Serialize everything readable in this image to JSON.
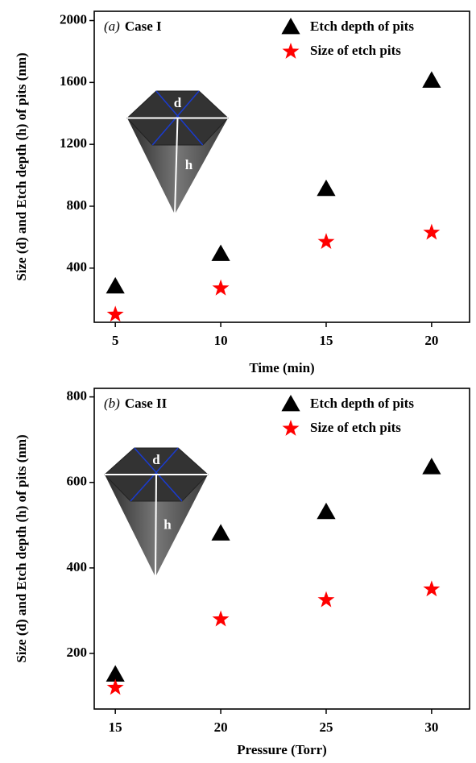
{
  "chart_data": [
    {
      "type": "scatter",
      "panel_label": "(a)",
      "case_label": "Case I",
      "x_label": "Time (min)",
      "y_label": "Size (d) and Etch depth (h) of pits (nm)",
      "xlim": [
        4,
        21.8
      ],
      "xticks": [
        5,
        10,
        15,
        20
      ],
      "ylim": [
        50,
        2060
      ],
      "yticks": [
        400,
        800,
        1200,
        1600,
        2000
      ],
      "legend": "upper right",
      "inset_labels": [
        "d",
        "h"
      ],
      "series": [
        {
          "name": "Etch depth of pits",
          "color": "#000000",
          "marker": "triangle",
          "x": [
            5,
            10,
            15,
            20
          ],
          "values": [
            280,
            490,
            910,
            1610
          ]
        },
        {
          "name": "Size of etch pits",
          "color": "#ff0000",
          "marker": "star",
          "x": [
            5,
            10,
            15,
            20
          ],
          "values": [
            100,
            270,
            570,
            630
          ]
        }
      ]
    },
    {
      "type": "scatter",
      "panel_label": "(b)",
      "case_label": "Case II",
      "x_label": "Pressure (Torr)",
      "y_label": "Size (d) and Etch depth (h) of pits (nm)",
      "xlim": [
        14,
        31.8
      ],
      "xticks": [
        15,
        20,
        25,
        30
      ],
      "ylim": [
        70,
        820
      ],
      "yticks": [
        200,
        400,
        600,
        800
      ],
      "legend": "upper right",
      "inset_labels": [
        "d",
        "h"
      ],
      "series": [
        {
          "name": "Etch depth of pits",
          "color": "#000000",
          "marker": "triangle",
          "x": [
            15,
            20,
            25,
            30
          ],
          "values": [
            150,
            480,
            530,
            635
          ]
        },
        {
          "name": "Size of etch pits",
          "color": "#ff0000",
          "marker": "star",
          "x": [
            15,
            20,
            25,
            30
          ],
          "values": [
            120,
            280,
            325,
            350
          ]
        }
      ]
    }
  ]
}
